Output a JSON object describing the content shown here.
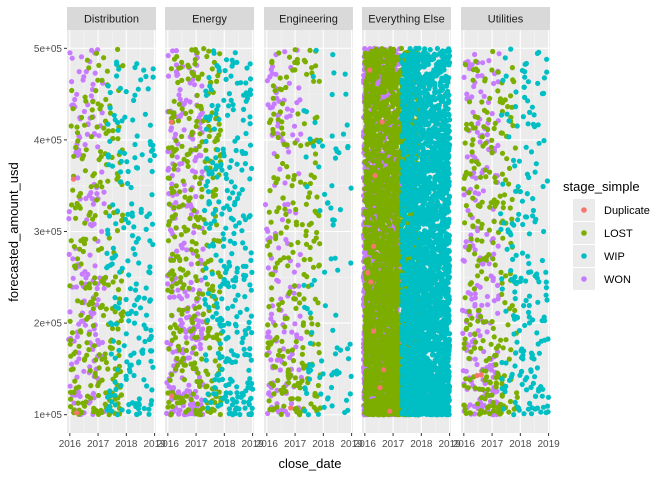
{
  "chart_data": {
    "type": "scatter",
    "facets": [
      "Distribution",
      "Energy",
      "Engineering",
      "Everything Else",
      "Utilities"
    ],
    "xlabel": "close_date",
    "ylabel": "forecasted_amount_usd",
    "x_ticks": [
      "2016",
      "2017",
      "2018",
      "2019"
    ],
    "y_ticks": [
      "1e+05",
      "2e+05",
      "3e+05",
      "4e+05",
      "5e+05"
    ],
    "xlim": [
      2015.9,
      2019.05
    ],
    "ylim": [
      80000,
      520000
    ],
    "grid": true,
    "legend_position": "right",
    "legend": {
      "title": "stage_simple",
      "items": [
        {
          "label": "Duplicate",
          "color": "#F8766D"
        },
        {
          "label": "LOST",
          "color": "#7CAE00"
        },
        {
          "label": "WIP",
          "color": "#00BFC4"
        },
        {
          "label": "WON",
          "color": "#C77CFF"
        }
      ]
    },
    "series_ranges": {
      "WON": {
        "x": [
          2015.95,
          2017.25
        ],
        "y": [
          100000,
          500000
        ]
      },
      "LOST": {
        "x": [
          2016.0,
          2017.9
        ],
        "y": [
          100000,
          500000
        ]
      },
      "WIP": {
        "x": [
          2017.3,
          2019.0
        ],
        "y": [
          100000,
          500000
        ]
      },
      "Duplicate": {
        "x": [
          2016.1,
          2016.9
        ],
        "y": [
          100000,
          500000
        ]
      }
    },
    "point_density": {
      "Distribution": {
        "WON": 160,
        "LOST": 260,
        "WIP": 200,
        "Duplicate": 2
      },
      "Energy": {
        "WON": 260,
        "LOST": 340,
        "WIP": 300,
        "Duplicate": 2
      },
      "Engineering": {
        "WON": 140,
        "LOST": 240,
        "WIP": 90,
        "Duplicate": 1
      },
      "Everything Else": {
        "WON": 2200,
        "LOST": 3200,
        "WIP": 3200,
        "Duplicate": 10
      },
      "Utilities": {
        "WON": 200,
        "LOST": 260,
        "WIP": 200,
        "Duplicate": 2
      }
    }
  }
}
